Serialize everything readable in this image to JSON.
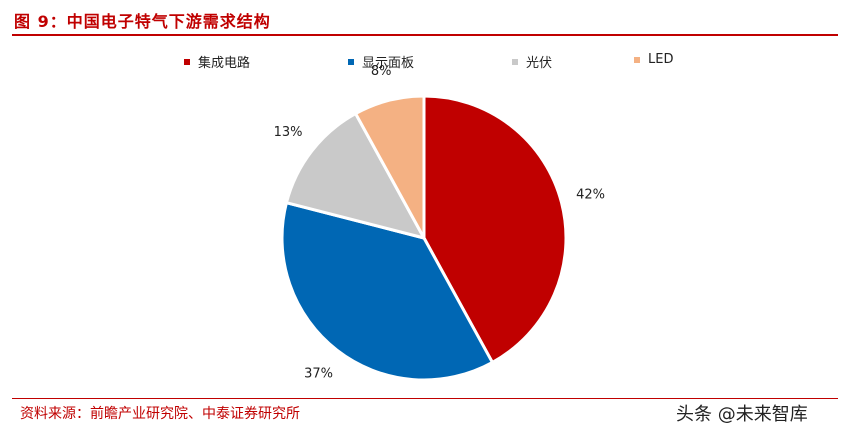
{
  "header": {
    "title": "图 9：中国电子特气下游需求结构"
  },
  "chart_data": {
    "type": "pie",
    "title": "",
    "categories": [
      "集成电路",
      "显示面板",
      "光伏",
      "LED"
    ],
    "values": [
      42,
      37,
      13,
      8
    ],
    "labels": [
      "42%",
      "37%",
      "13%",
      "8%"
    ],
    "colors": [
      "#c00000",
      "#0067b4",
      "#c9c9c9",
      "#f4b183"
    ],
    "legend": "top"
  },
  "footer": {
    "source": "资料来源：前瞻产业研究院、中泰证券研究所",
    "watermark": "头条 @未来智库"
  }
}
